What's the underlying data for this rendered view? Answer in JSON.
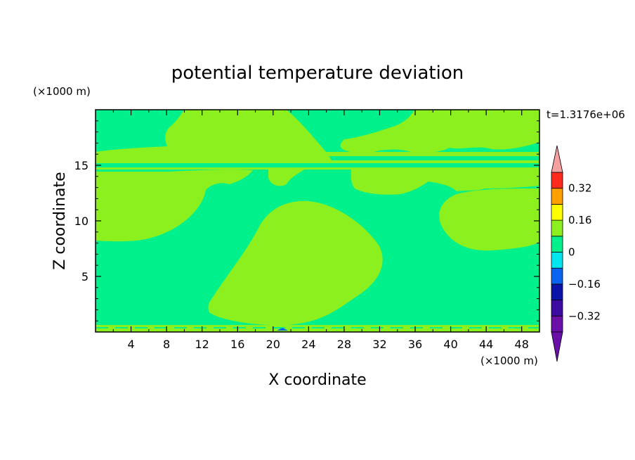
{
  "chart_data": {
    "type": "heatmap",
    "title": "potential temperature deviation",
    "xlabel": "X coordinate",
    "ylabel": "Z coordinate",
    "x_unit": "(×1000 m)",
    "y_unit": "(×1000 m)",
    "time_label": "t=1.3176e+06",
    "xlim": [
      0,
      50
    ],
    "ylim": [
      0,
      20
    ],
    "x_ticks": [
      "4",
      "8",
      "12",
      "16",
      "20",
      "24",
      "28",
      "32",
      "36",
      "40",
      "44",
      "48"
    ],
    "y_ticks": [
      "5",
      "10",
      "15"
    ],
    "colorbar": {
      "levels": [
        -0.4,
        -0.32,
        -0.24,
        -0.16,
        -0.08,
        0,
        0.08,
        0.16,
        0.24,
        0.32,
        0.4
      ],
      "colors": [
        "#6a0fa8",
        "#3c0aa0",
        "#0a14a8",
        "#0a64f0",
        "#00e6f0",
        "#00f08c",
        "#8cf01e",
        "#ffff00",
        "#ffa000",
        "#ff2a1e",
        "#f5a0a0"
      ],
      "labels": [
        "0.32",
        "0.16",
        "0",
        "-0.16",
        "-0.32"
      ]
    },
    "field_colors": {
      "background_band": "#00f08c",
      "positive_band": "#8cf01e",
      "negative_band": "#0a64f0"
    },
    "grid": false,
    "legend": "right"
  }
}
